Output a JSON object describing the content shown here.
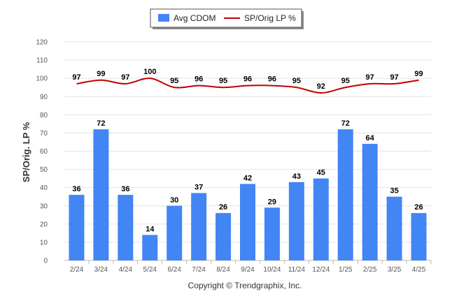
{
  "chart_data": {
    "type": "bar",
    "categories": [
      "2/24",
      "3/24",
      "4/24",
      "5/24",
      "6/24",
      "7/24",
      "8/24",
      "9/24",
      "10/24",
      "11/24",
      "12/24",
      "1/25",
      "2/25",
      "3/25",
      "4/25"
    ],
    "series": [
      {
        "name": "Avg CDOM",
        "type": "bar",
        "color": "#4285F4",
        "values": [
          36,
          72,
          36,
          14,
          30,
          37,
          26,
          42,
          29,
          43,
          45,
          72,
          64,
          35,
          26
        ]
      },
      {
        "name": "SP/Orig LP %",
        "type": "line",
        "color": "#C00000",
        "values": [
          97,
          99,
          97,
          100,
          95,
          96,
          95,
          96,
          96,
          95,
          92,
          95,
          97,
          97,
          99
        ]
      }
    ],
    "ylabel": "SP/Orig. LP %",
    "xlabel": "",
    "ylim": [
      0,
      120
    ],
    "yticks": [
      0,
      10,
      20,
      30,
      40,
      50,
      60,
      70,
      80,
      90,
      100,
      110,
      120
    ],
    "grid": true,
    "legend_position": "top-center"
  },
  "credit": "Copyright © Trendgraphix, Inc."
}
